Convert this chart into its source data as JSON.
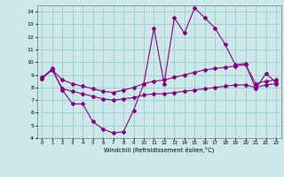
{
  "xlabel": "Windchill (Refroidissement éolien,°C)",
  "bg_color": "#cce8e8",
  "grid_color": "#99cccc",
  "line_color": "#880088",
  "xlim": [
    -0.5,
    23.5
  ],
  "ylim": [
    4,
    14.5
  ],
  "yticks": [
    4,
    5,
    6,
    7,
    8,
    9,
    10,
    11,
    12,
    13,
    14
  ],
  "xticks": [
    0,
    1,
    2,
    3,
    4,
    5,
    6,
    7,
    8,
    9,
    10,
    11,
    12,
    13,
    14,
    15,
    16,
    17,
    18,
    19,
    20,
    21,
    22,
    23
  ],
  "line1_x": [
    0,
    1,
    2,
    3,
    4,
    5,
    6,
    7,
    8,
    9,
    10,
    11,
    12,
    13,
    14,
    15,
    16,
    17,
    18,
    19,
    20,
    21,
    22,
    23
  ],
  "line1_y": [
    8.7,
    9.5,
    7.8,
    6.7,
    6.7,
    5.3,
    4.7,
    4.4,
    4.5,
    6.2,
    8.3,
    12.7,
    8.3,
    13.5,
    12.3,
    14.3,
    13.5,
    12.7,
    11.4,
    9.8,
    9.9,
    7.9,
    9.1,
    8.4
  ],
  "line2_x": [
    0,
    1,
    2,
    3,
    4,
    5,
    6,
    7,
    8,
    9,
    10,
    11,
    12,
    13,
    14,
    15,
    16,
    17,
    18,
    19,
    20,
    21,
    22,
    23
  ],
  "line2_y": [
    8.8,
    9.4,
    8.6,
    8.3,
    8.1,
    7.9,
    7.7,
    7.6,
    7.8,
    8.0,
    8.3,
    8.5,
    8.6,
    8.8,
    9.0,
    9.2,
    9.4,
    9.5,
    9.6,
    9.7,
    9.8,
    8.3,
    8.5,
    8.6
  ],
  "line3_x": [
    0,
    1,
    2,
    3,
    4,
    5,
    6,
    7,
    8,
    9,
    10,
    11,
    12,
    13,
    14,
    15,
    16,
    17,
    18,
    19,
    20,
    21,
    22,
    23
  ],
  "line3_y": [
    8.7,
    9.4,
    7.9,
    7.7,
    7.5,
    7.3,
    7.1,
    7.0,
    7.1,
    7.2,
    7.4,
    7.5,
    7.5,
    7.6,
    7.7,
    7.8,
    7.9,
    8.0,
    8.1,
    8.2,
    8.2,
    8.0,
    8.2,
    8.3
  ]
}
